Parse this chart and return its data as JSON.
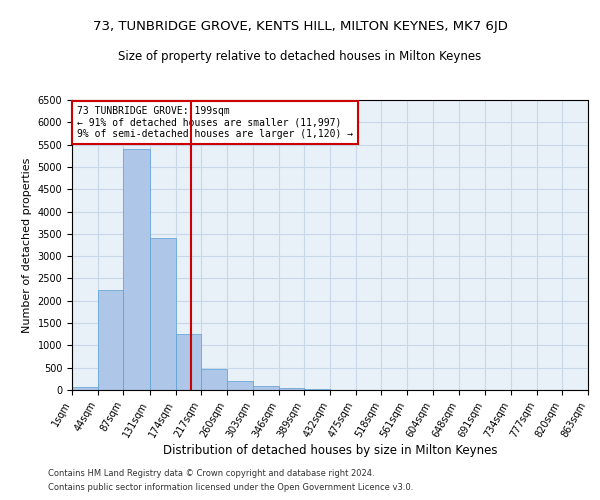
{
  "title1": "73, TUNBRIDGE GROVE, KENTS HILL, MILTON KEYNES, MK7 6JD",
  "title2": "Size of property relative to detached houses in Milton Keynes",
  "xlabel": "Distribution of detached houses by size in Milton Keynes",
  "ylabel": "Number of detached properties",
  "footnote1": "Contains HM Land Registry data © Crown copyright and database right 2024.",
  "footnote2": "Contains public sector information licensed under the Open Government Licence v3.0.",
  "annotation_line1": "73 TUNBRIDGE GROVE: 199sqm",
  "annotation_line2": "← 91% of detached houses are smaller (11,997)",
  "annotation_line3": "9% of semi-detached houses are larger (1,120) →",
  "bar_color": "#aec6e8",
  "bar_edge_color": "#5a9fd4",
  "vline_color": "#cc0000",
  "vline_x": 199,
  "bins": [
    1,
    44,
    87,
    131,
    174,
    217,
    260,
    303,
    346,
    389,
    432,
    475,
    518,
    561,
    604,
    648,
    691,
    734,
    777,
    820,
    863
  ],
  "bar_heights": [
    75,
    2250,
    5400,
    3400,
    1250,
    475,
    200,
    100,
    50,
    30,
    10,
    5,
    3,
    2,
    2,
    1,
    1,
    1,
    1,
    1
  ],
  "xlim": [
    1,
    863
  ],
  "ylim": [
    0,
    6500
  ],
  "yticks": [
    0,
    500,
    1000,
    1500,
    2000,
    2500,
    3000,
    3500,
    4000,
    4500,
    5000,
    5500,
    6000,
    6500
  ],
  "grid_color": "#c8d8e8",
  "bg_color": "#e8f0f8",
  "title1_fontsize": 9.5,
  "title2_fontsize": 8.5,
  "xlabel_fontsize": 8.5,
  "ylabel_fontsize": 8,
  "tick_fontsize": 7,
  "annotation_fontsize": 7,
  "footnote_fontsize": 6,
  "annotation_box_color": "#ffffff",
  "annotation_box_edge": "#cc0000"
}
